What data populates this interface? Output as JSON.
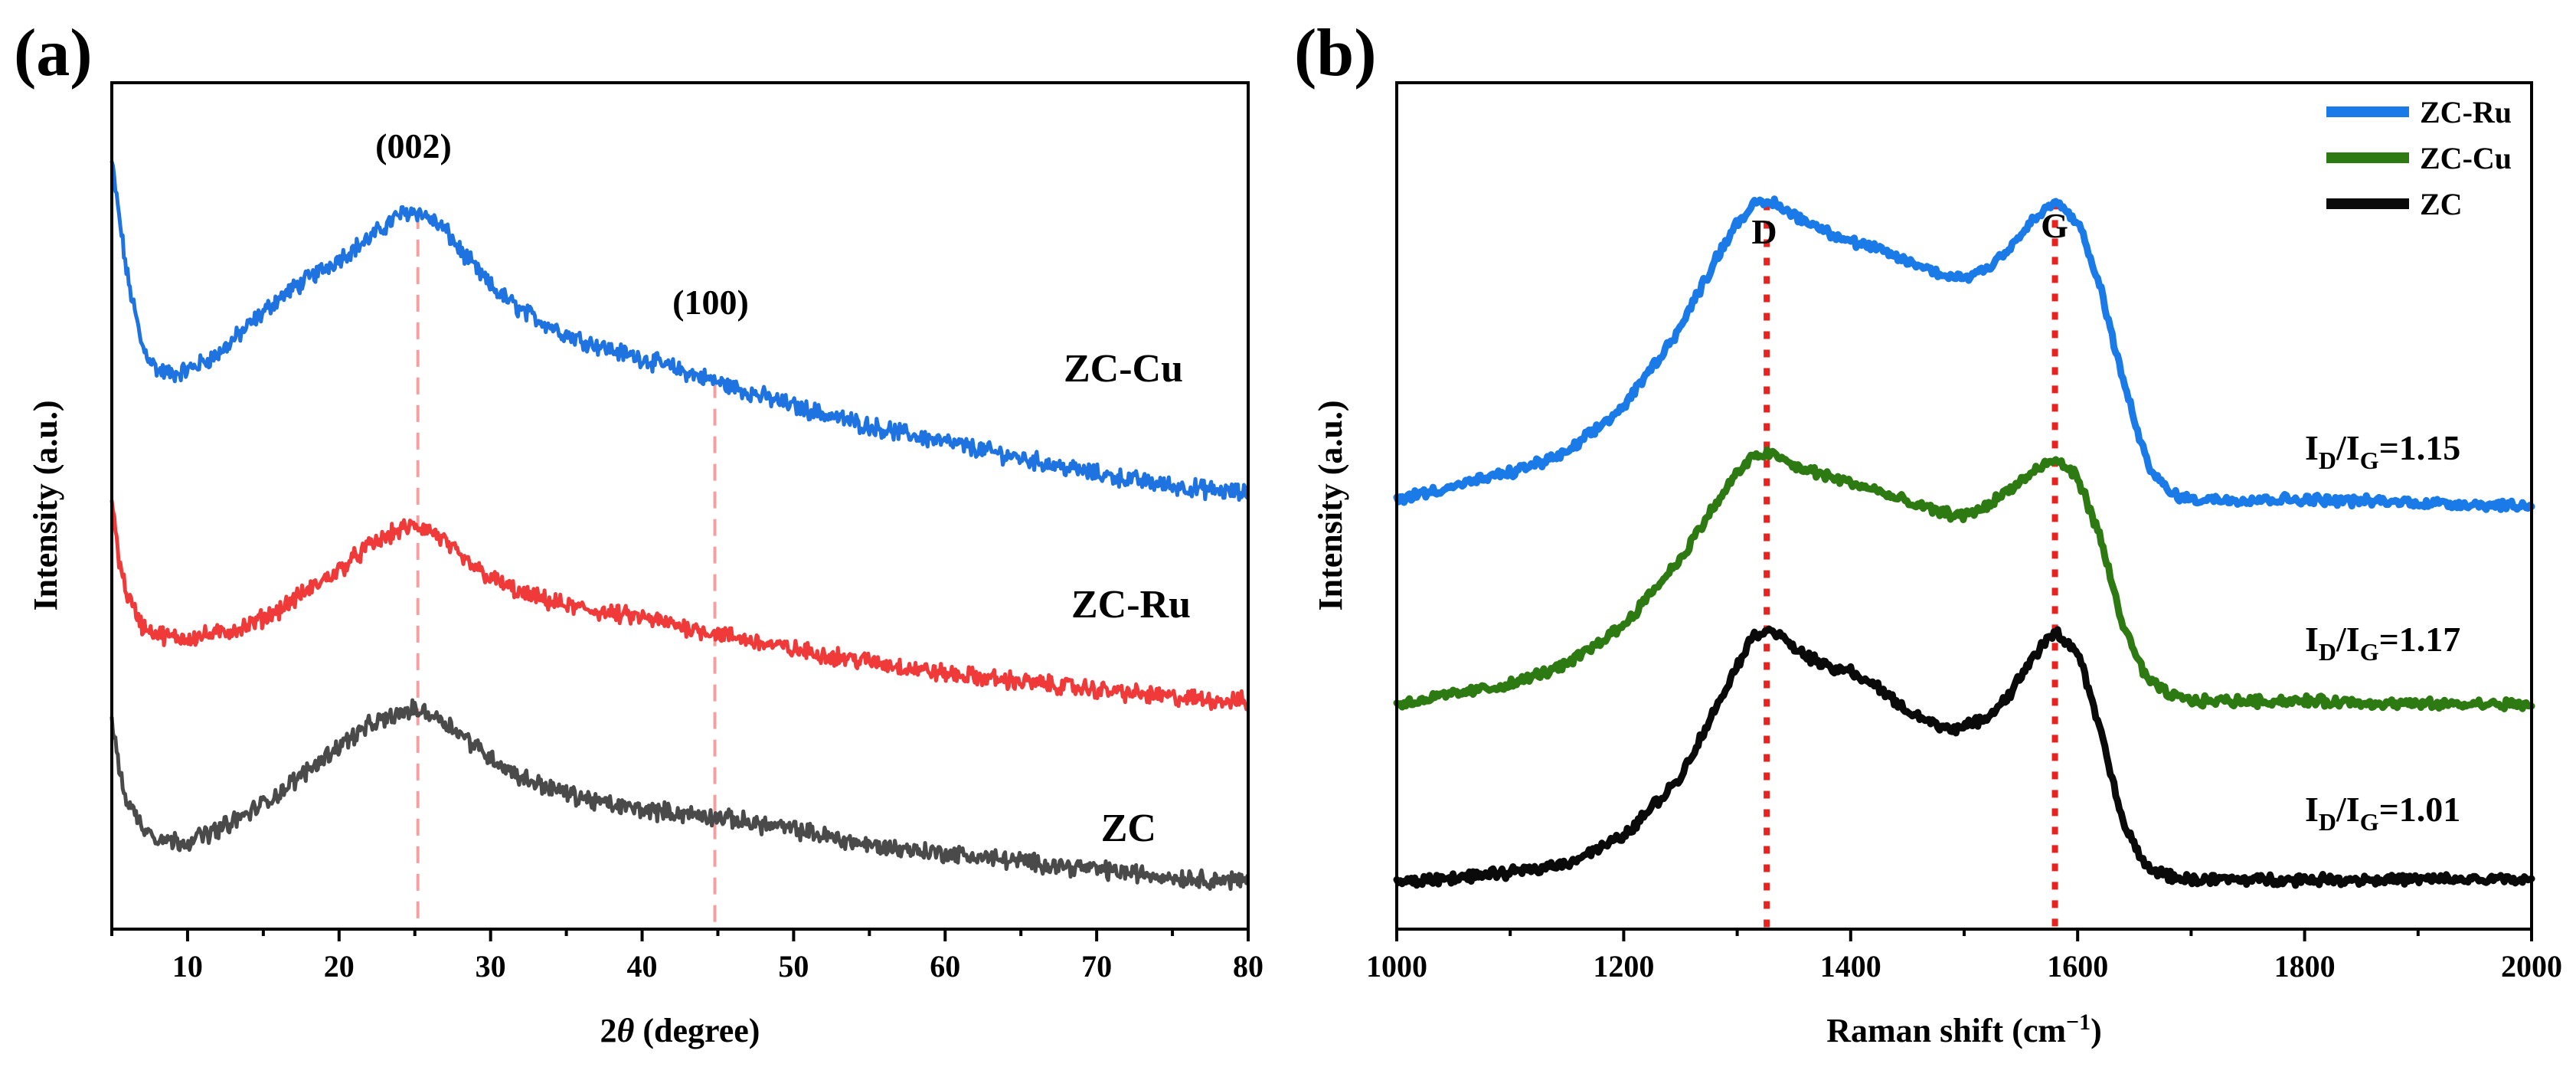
{
  "chart_data": [
    {
      "type": "line",
      "panel_label": "(a)",
      "xlabel_prefix": "2",
      "xlabel_symbol": "θ",
      "xlabel_suffix": " (degree)",
      "ylabel": "Intensity (a.u.)",
      "xlim": [
        5,
        80
      ],
      "xticks": [
        10,
        20,
        30,
        40,
        50,
        60,
        70,
        80
      ],
      "yticks_shown": false,
      "series": [
        {
          "name": "ZC-Cu",
          "color": "#1f73e0",
          "x": [
            5,
            6,
            7,
            8,
            9,
            10,
            12,
            14,
            16,
            18,
            20,
            22,
            24,
            25,
            26,
            27,
            28,
            30,
            32,
            35,
            38,
            40,
            45,
            50,
            55,
            60,
            65,
            70,
            75,
            80
          ],
          "y": [
            90,
            76,
            67,
            64,
            63.5,
            64,
            66,
            69.5,
            73,
            75.5,
            78,
            80.5,
            83.5,
            84,
            83,
            81.5,
            79,
            74.5,
            71.5,
            68.5,
            66.5,
            65.5,
            62.5,
            59.5,
            57,
            55,
            53,
            51,
            49.5,
            48.5
          ]
        },
        {
          "name": "ZC-Ru",
          "color": "#f03a3a",
          "x": [
            5,
            5.5,
            6,
            7,
            8,
            9,
            10,
            12,
            14,
            16,
            18,
            20,
            22,
            24,
            25,
            26,
            27,
            28,
            30,
            32,
            35,
            38,
            40,
            45,
            50,
            55,
            60,
            65,
            70,
            75,
            80
          ],
          "y": [
            48,
            40,
            36,
            32,
            31,
            30.5,
            30.5,
            31,
            32,
            34,
            36.5,
            39,
            42,
            44,
            44.5,
            44,
            42.5,
            40.5,
            38,
            36,
            34.5,
            33.5,
            33,
            31,
            29,
            27.5,
            26,
            25,
            24,
            23,
            22.5
          ]
        },
        {
          "name": "ZC",
          "color": "#4a4a4a",
          "x": [
            5,
            5.5,
            6,
            7,
            8,
            9,
            10,
            12,
            14,
            16,
            18,
            20,
            22,
            24,
            25,
            26,
            27,
            28,
            30,
            32,
            35,
            38,
            40,
            45,
            50,
            55,
            60,
            65,
            70,
            75,
            80
          ],
          "y": [
            20,
            14,
            10,
            7,
            5.5,
            5,
            5,
            6.5,
            8.5,
            11,
            14,
            17,
            19.5,
            21,
            21.5,
            21,
            20,
            18.5,
            15.5,
            13,
            11,
            9.5,
            9,
            8,
            6.5,
            4.5,
            3.5,
            2.5,
            1.5,
            0.5,
            0
          ]
        }
      ],
      "noise_amplitude": 0.9,
      "ylim": [
        -6,
        100
      ],
      "peak_labels": [
        {
          "text": "(002)",
          "x": 25.2
        },
        {
          "text": "(100)",
          "x": 44.8
        }
      ],
      "reference_lines_x": [
        25.2,
        44.8
      ],
      "reference_line_color": "#f5a0a0",
      "curve_labels": [
        "ZC-Cu",
        "ZC-Ru",
        "ZC"
      ]
    },
    {
      "type": "line",
      "panel_label": "(b)",
      "xlabel": "Raman shift (cm",
      "xlabel_sup": "−1",
      "xlabel_close": ")",
      "ylabel": "Intensity (a.u.)",
      "xlim": [
        1000,
        2000
      ],
      "xticks": [
        1000,
        1200,
        1400,
        1600,
        1800,
        2000
      ],
      "yticks_shown": false,
      "series": [
        {
          "name": "ZC-Ru",
          "color": "#1a7be8",
          "x": [
            1000,
            1100,
            1150,
            1200,
            1250,
            1280,
            1300,
            1315,
            1330,
            1350,
            1380,
            1400,
            1420,
            1450,
            1480,
            1500,
            1520,
            1540,
            1560,
            1580,
            1600,
            1620,
            1640,
            1660,
            1680,
            1700,
            1750,
            1800,
            1900,
            2000
          ],
          "y": [
            62,
            66,
            69,
            76,
            88,
            98,
            104,
            106.5,
            107,
            105,
            102.5,
            101,
            100,
            98,
            96,
            95.5,
            97,
            100,
            104,
            107,
            104,
            94,
            80,
            68,
            63,
            62,
            62,
            62,
            61.5,
            61
          ]
        },
        {
          "name": "ZC-Cu",
          "color": "#2e7a12",
          "x": [
            1000,
            1100,
            1150,
            1200,
            1250,
            1280,
            1300,
            1315,
            1330,
            1350,
            1380,
            1400,
            1420,
            1450,
            1480,
            1500,
            1520,
            1540,
            1560,
            1580,
            1600,
            1620,
            1640,
            1660,
            1680,
            1700,
            1750,
            1800,
            1900,
            2000
          ],
          "y": [
            31,
            34,
            37,
            43,
            53,
            61,
            66,
            68.5,
            69,
            67,
            65.5,
            64.5,
            63.5,
            61.5,
            60,
            59.5,
            61,
            63.5,
            66,
            68,
            65.5,
            56,
            43,
            35,
            32.5,
            31.5,
            31.5,
            31.5,
            31,
            31
          ]
        },
        {
          "name": "ZC",
          "color": "#0a0a0a",
          "x": [
            1000,
            1100,
            1150,
            1200,
            1250,
            1280,
            1300,
            1315,
            1330,
            1350,
            1380,
            1400,
            1420,
            1450,
            1480,
            1500,
            1520,
            1540,
            1560,
            1580,
            1600,
            1620,
            1640,
            1660,
            1680,
            1700,
            1750,
            1800,
            1900,
            2000
          ],
          "y": [
            4,
            5.5,
            7,
            11,
            20,
            30,
            37,
            41.5,
            42.5,
            39.5,
            36.5,
            36,
            34,
            30,
            27.5,
            27.5,
            29,
            32.5,
            38,
            42,
            39,
            27,
            13,
            6.5,
            5,
            4.5,
            4.5,
            4.5,
            4.5,
            4.5
          ]
        }
      ],
      "noise_amplitude": 0.6,
      "ylim": [
        -3,
        125
      ],
      "peak_labels": [
        {
          "text": "D",
          "x": 1326
        },
        {
          "text": "G",
          "x": 1580
        }
      ],
      "reference_lines_x": [
        1326,
        1580
      ],
      "reference_line_color": "#e8231f",
      "legend": [
        "ZC-Ru",
        "ZC-Cu",
        "ZC"
      ],
      "legend_position": "top-right",
      "ratio_labels": [
        {
          "prefix": "I",
          "sub1": "D",
          "mid": "/I",
          "sub2": "G",
          "value": "=1.15"
        },
        {
          "prefix": "I",
          "sub1": "D",
          "mid": "/I",
          "sub2": "G",
          "value": "=1.17"
        },
        {
          "prefix": "I",
          "sub1": "D",
          "mid": "/I",
          "sub2": "G",
          "value": "=1.01"
        }
      ]
    }
  ]
}
